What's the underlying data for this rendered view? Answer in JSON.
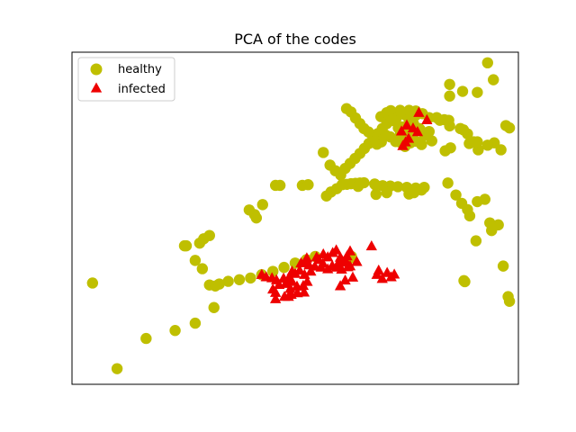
{
  "chart_data": {
    "type": "scatter",
    "title": "PCA of the codes",
    "xlabel": "",
    "ylabel": "",
    "xlim": [
      0,
      100
    ],
    "ylim": [
      0,
      100
    ],
    "ticks": "none",
    "grid": false,
    "legend": {
      "placement": "top-left"
    },
    "series": [
      {
        "name": "healthy",
        "marker": "circle",
        "color": "#bfbf00",
        "points": [
          [
            4.6,
            30.5
          ],
          [
            10.1,
            4.7
          ],
          [
            16.6,
            13.8
          ],
          [
            23.1,
            16.2
          ],
          [
            27.6,
            18.4
          ],
          [
            31.8,
            23.1
          ],
          [
            30.8,
            29.9
          ],
          [
            29.2,
            34.8
          ],
          [
            27.6,
            37.3
          ],
          [
            25.2,
            41.7
          ],
          [
            28.6,
            42.5
          ],
          [
            32.1,
            29.6
          ],
          [
            33.0,
            30.2
          ],
          [
            35.0,
            31.0
          ],
          [
            37.5,
            31.5
          ],
          [
            40.0,
            32.0
          ],
          [
            42.5,
            33.0
          ],
          [
            45.0,
            34.0
          ],
          [
            47.5,
            35.2
          ],
          [
            50.0,
            36.5
          ],
          [
            52.5,
            37.5
          ],
          [
            54.5,
            38.5
          ],
          [
            39.7,
            52.5
          ],
          [
            40.9,
            51.1
          ],
          [
            41.3,
            50.1
          ],
          [
            42.7,
            54.1
          ],
          [
            45.6,
            59.9
          ],
          [
            46.6,
            59.9
          ],
          [
            51.6,
            59.9
          ],
          [
            52.9,
            60.1
          ],
          [
            57.0,
            56.7
          ],
          [
            58.0,
            57.9
          ],
          [
            59.3,
            58.9
          ],
          [
            60.5,
            60.1
          ],
          [
            61.5,
            60.2
          ],
          [
            62.5,
            60.4
          ],
          [
            63.5,
            60.5
          ],
          [
            64.5,
            60.6
          ],
          [
            65.4,
            60.7
          ],
          [
            67.8,
            60.3
          ],
          [
            69.6,
            59.8
          ],
          [
            71.3,
            59.7
          ],
          [
            73.0,
            59.5
          ],
          [
            75.0,
            59.3
          ],
          [
            77.0,
            59.1
          ],
          [
            78.3,
            58.5
          ],
          [
            78.9,
            59.3
          ],
          [
            76.6,
            57.7
          ],
          [
            61.2,
            65.0
          ],
          [
            62.3,
            66.5
          ],
          [
            63.4,
            68.0
          ],
          [
            64.5,
            69.5
          ],
          [
            65.5,
            71.0
          ],
          [
            66.5,
            72.5
          ],
          [
            67.5,
            74.0
          ],
          [
            68.5,
            75.5
          ],
          [
            69.5,
            77.0
          ],
          [
            70.5,
            78.5
          ],
          [
            71.5,
            80.0
          ],
          [
            72.5,
            81.5
          ],
          [
            73.5,
            82.5
          ],
          [
            74.5,
            81.2
          ],
          [
            75.5,
            79.8
          ],
          [
            76.5,
            78.5
          ],
          [
            77.8,
            77.0
          ],
          [
            79.0,
            75.0
          ],
          [
            77.0,
            73.2
          ],
          [
            78.3,
            72.2
          ],
          [
            75.8,
            72.7
          ],
          [
            74.6,
            71.6
          ],
          [
            73.5,
            72.9
          ],
          [
            72.5,
            73.1
          ],
          [
            71.3,
            74.5
          ],
          [
            70.3,
            75.0
          ],
          [
            69.3,
            73.0
          ],
          [
            68.3,
            72.3
          ],
          [
            67.4,
            74.5
          ],
          [
            66.4,
            76.0
          ],
          [
            65.4,
            77.0
          ],
          [
            64.5,
            78.5
          ],
          [
            63.5,
            80.2
          ],
          [
            62.5,
            82.0
          ],
          [
            61.5,
            83.0
          ],
          [
            56.3,
            69.8
          ],
          [
            57.8,
            66.0
          ],
          [
            59.0,
            64.3
          ],
          [
            60.2,
            63.0
          ],
          [
            69.2,
            80.6
          ],
          [
            70.5,
            81.8
          ],
          [
            71.4,
            82.4
          ],
          [
            72.6,
            80.0
          ],
          [
            73.8,
            82.0
          ],
          [
            75.5,
            82.5
          ],
          [
            77.0,
            82.3
          ],
          [
            78.5,
            81.5
          ],
          [
            80.0,
            80.3
          ],
          [
            81.7,
            80.3
          ],
          [
            83.4,
            79.7
          ],
          [
            84.6,
            77.8
          ],
          [
            87.0,
            77.0
          ],
          [
            88.6,
            75.4
          ],
          [
            90.0,
            73.0
          ],
          [
            91.0,
            70.6
          ],
          [
            84.8,
            71.2
          ],
          [
            83.6,
            70.3
          ],
          [
            80.6,
            73.3
          ],
          [
            80.0,
            76.1
          ],
          [
            73.1,
            77.2
          ],
          [
            74.4,
            75.7
          ],
          [
            75.2,
            76.6
          ],
          [
            76.2,
            74.8
          ],
          [
            77.5,
            76.6
          ],
          [
            84.6,
            86.8
          ],
          [
            84.6,
            90.3
          ],
          [
            87.5,
            88.2
          ],
          [
            94.4,
            91.7
          ],
          [
            90.8,
            87.9
          ],
          [
            93.1,
            96.8
          ],
          [
            89.0,
            72.5
          ],
          [
            97.2,
            77.9
          ],
          [
            98.0,
            77.2
          ],
          [
            96.1,
            70.6
          ],
          [
            94.6,
            72.7
          ],
          [
            93.1,
            72.0
          ],
          [
            90.8,
            73.0
          ],
          [
            87.7,
            76.6
          ],
          [
            84.4,
            79.5
          ],
          [
            82.4,
            79.5
          ],
          [
            78.0,
            76.7
          ],
          [
            75.5,
            73.0
          ],
          [
            73.6,
            75.5
          ],
          [
            73.9,
            77.5
          ],
          [
            75.2,
            78.0
          ],
          [
            72.0,
            79.4
          ],
          [
            77.0,
            81.0
          ],
          [
            68.1,
            57.2
          ],
          [
            68.0,
            60.0
          ],
          [
            64.1,
            59.6
          ],
          [
            70.5,
            57.7
          ],
          [
            75.5,
            57.3
          ],
          [
            84.2,
            60.6
          ],
          [
            86.0,
            57.0
          ],
          [
            87.3,
            54.5
          ],
          [
            88.6,
            52.6
          ],
          [
            89.1,
            50.7
          ],
          [
            90.8,
            55.0
          ],
          [
            92.5,
            55.7
          ],
          [
            95.5,
            48.0
          ],
          [
            93.6,
            48.6
          ],
          [
            90.5,
            43.2
          ],
          [
            94.0,
            46.3
          ],
          [
            96.6,
            35.6
          ],
          [
            97.7,
            26.4
          ],
          [
            98.0,
            25.0
          ],
          [
            88.0,
            30.9
          ],
          [
            87.8,
            31.2
          ],
          [
            29.5,
            43.8
          ],
          [
            25.6,
            41.7
          ],
          [
            30.8,
            44.8
          ],
          [
            62.6,
            38.5
          ],
          [
            62.4,
            38.0
          ]
        ]
      },
      {
        "name": "infected",
        "marker": "triangle",
        "color": "#ee0000",
        "points": [
          [
            42.5,
            33.0
          ],
          [
            43.5,
            32.3
          ],
          [
            44.8,
            32.0
          ],
          [
            45.8,
            31.4
          ],
          [
            46.4,
            30.0
          ],
          [
            47.9,
            30.3
          ],
          [
            48.8,
            32.0
          ],
          [
            49.3,
            34.0
          ],
          [
            50.0,
            33.3
          ],
          [
            51.0,
            34.3
          ],
          [
            52.1,
            33.0
          ],
          [
            53.5,
            34.0
          ],
          [
            55.8,
            35.2
          ],
          [
            57.3,
            34.7
          ],
          [
            58.3,
            35.7
          ],
          [
            59.6,
            36.3
          ],
          [
            60.5,
            37.3
          ],
          [
            61.5,
            36.7
          ],
          [
            61.8,
            35.3
          ],
          [
            62.3,
            35.6
          ],
          [
            63.8,
            36.9
          ],
          [
            60.4,
            34.6
          ],
          [
            59.3,
            35.2
          ],
          [
            56.2,
            36.4
          ],
          [
            55.3,
            37.5
          ],
          [
            54.4,
            35.5
          ],
          [
            53.1,
            35.9
          ],
          [
            52.3,
            36.9
          ],
          [
            51.3,
            36.5
          ],
          [
            52.6,
            38.0
          ],
          [
            54.8,
            38.3
          ],
          [
            56.3,
            39.2
          ],
          [
            57.3,
            38.3
          ],
          [
            58.4,
            39.6
          ],
          [
            59.2,
            40.4
          ],
          [
            60.1,
            38.2
          ],
          [
            61.6,
            38.6
          ],
          [
            62.3,
            40.1
          ],
          [
            67.1,
            41.6
          ],
          [
            68.7,
            34.3
          ],
          [
            68.3,
            33.0
          ],
          [
            69.5,
            31.8
          ],
          [
            70.6,
            33.6
          ],
          [
            72.2,
            33.1
          ],
          [
            71.5,
            32.3
          ],
          [
            52.7,
            30.9
          ],
          [
            51.8,
            29.7
          ],
          [
            50.4,
            29.5
          ],
          [
            49.3,
            30.9
          ],
          [
            48.4,
            31.6
          ],
          [
            47.4,
            31.9
          ],
          [
            60.1,
            29.6
          ],
          [
            61.2,
            31.3
          ],
          [
            62.9,
            32.2
          ],
          [
            74.1,
            71.8
          ],
          [
            74.7,
            72.9
          ],
          [
            75.4,
            74.0
          ],
          [
            77.4,
            76.0
          ],
          [
            79.5,
            79.6
          ],
          [
            77.7,
            81.8
          ],
          [
            75.0,
            78.0
          ],
          [
            76.4,
            77.1
          ],
          [
            73.8,
            76.2
          ],
          [
            48.9,
            28.8
          ],
          [
            52.0,
            27.7
          ],
          [
            50.5,
            27.5
          ],
          [
            49.1,
            27.0
          ],
          [
            48.5,
            26.4
          ],
          [
            47.6,
            26.4
          ],
          [
            45.6,
            25.7
          ],
          [
            45.6,
            27.6
          ],
          [
            45.0,
            28.6
          ]
        ]
      }
    ]
  }
}
